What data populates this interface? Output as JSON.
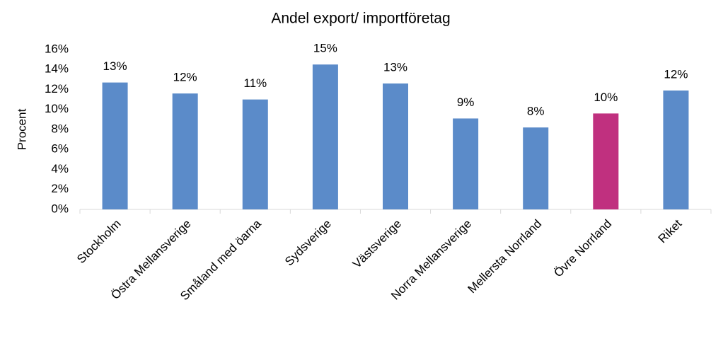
{
  "chart_data": {
    "type": "bar",
    "title": "Andel export/ importföretag",
    "y_label": "Procent",
    "categories": [
      "Stockholm",
      "Östra Mellansverige",
      "Småland med öarna",
      "Sydsverige",
      "Västsverige",
      "Norra Mellansverige",
      "Mellersta Norrland",
      "Övre Norrland",
      "Riket"
    ],
    "values": [
      12.7,
      11.6,
      11.0,
      14.5,
      12.6,
      9.1,
      8.2,
      9.6,
      11.9
    ],
    "value_labels": [
      "13%",
      "12%",
      "11%",
      "15%",
      "13%",
      "9%",
      "8%",
      "10%",
      "12%"
    ],
    "colors": [
      "#5b8bc9",
      "#5b8bc9",
      "#5b8bc9",
      "#5b8bc9",
      "#5b8bc9",
      "#5b8bc9",
      "#5b8bc9",
      "#c0307f",
      "#5b8bc9"
    ],
    "ylim": [
      0,
      16
    ],
    "yticks": [
      {
        "value": 0,
        "label": "0%"
      },
      {
        "value": 2,
        "label": "2%"
      },
      {
        "value": 4,
        "label": "4%"
      },
      {
        "value": 6,
        "label": "6%"
      },
      {
        "value": 8,
        "label": "8%"
      },
      {
        "value": 10,
        "label": "10%"
      },
      {
        "value": 12,
        "label": "12%"
      },
      {
        "value": 14,
        "label": "14%"
      },
      {
        "value": 16,
        "label": "16%"
      }
    ],
    "grid": false
  }
}
